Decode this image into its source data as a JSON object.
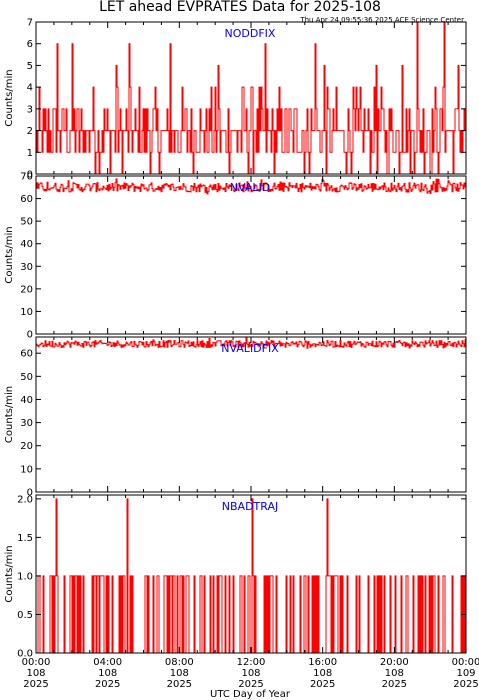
{
  "title": "LET ahead EVPRATES Data for 2025-108",
  "timestamp": "Thu Apr 24 09:55:36 2025 ACE Science Center",
  "x_axis_label": "UTC Day of Year",
  "colors": {
    "data": "#ff0000",
    "panel_title": "#0000ff",
    "axes": "#000000"
  },
  "chart_data": [
    {
      "type": "line",
      "title": "NODDFIX",
      "ylabel": "Counts/min",
      "ylim": [
        0,
        7
      ],
      "yticks": [
        0,
        1,
        2,
        3,
        4,
        5,
        6,
        7
      ],
      "x_unit": "UTC hours of day 108",
      "xlim": [
        0,
        24
      ],
      "typical_range": [
        0,
        4
      ],
      "spikes": [
        {
          "x": 1.2,
          "y": 6
        },
        {
          "x": 2.0,
          "y": 6
        },
        {
          "x": 4.5,
          "y": 5
        },
        {
          "x": 5.2,
          "y": 6
        },
        {
          "x": 7.5,
          "y": 6
        },
        {
          "x": 10.2,
          "y": 5
        },
        {
          "x": 12.8,
          "y": 6
        },
        {
          "x": 15.6,
          "y": 6
        },
        {
          "x": 16.1,
          "y": 5
        },
        {
          "x": 19.0,
          "y": 5
        },
        {
          "x": 20.5,
          "y": 5
        },
        {
          "x": 21.3,
          "y": 7
        },
        {
          "x": 22.8,
          "y": 7
        },
        {
          "x": 23.6,
          "y": 5
        }
      ]
    },
    {
      "type": "line",
      "title": "NVALID",
      "ylabel": "Counts/min",
      "ylim": [
        0,
        70
      ],
      "yticks": [
        0,
        10,
        20,
        30,
        40,
        50,
        60,
        70
      ],
      "x_unit": "UTC hours of day 108",
      "xlim": [
        0,
        24
      ],
      "typical_range": [
        62,
        69
      ],
      "mean": 65
    },
    {
      "type": "line",
      "title": "NVALIDFIX",
      "ylabel": "Counts/min",
      "ylim": [
        0,
        67
      ],
      "yticks": [
        0,
        10,
        20,
        30,
        40,
        50,
        60
      ],
      "x_unit": "UTC hours of day 108",
      "xlim": [
        0,
        24
      ],
      "typical_range": [
        62,
        67
      ],
      "mean": 64
    },
    {
      "type": "line",
      "title": "NBADTRAJ",
      "ylabel": "Counts/min",
      "ylim": [
        0,
        2.05
      ],
      "yticks": [
        "0.0",
        "0.5",
        "1.0",
        "1.5",
        "2.0"
      ],
      "x_unit": "UTC hours of day 108",
      "xlim": [
        0,
        24
      ],
      "typical_range": [
        0,
        1
      ],
      "spikes": [
        {
          "x": 1.1,
          "y": 2
        },
        {
          "x": 5.1,
          "y": 2
        },
        {
          "x": 12.1,
          "y": 2
        },
        {
          "x": 16.3,
          "y": 2
        }
      ]
    }
  ],
  "x_ticks": [
    {
      "time": "00:00",
      "day": "108",
      "year": "2025"
    },
    {
      "time": "04:00",
      "day": "108",
      "year": "2025"
    },
    {
      "time": "08:00",
      "day": "108",
      "year": "2025"
    },
    {
      "time": "12:00",
      "day": "108",
      "year": "2025"
    },
    {
      "time": "16:00",
      "day": "108",
      "year": "2025"
    },
    {
      "time": "20:00",
      "day": "108",
      "year": "2025"
    },
    {
      "time": "00:00",
      "day": "109",
      "year": "2025"
    }
  ]
}
